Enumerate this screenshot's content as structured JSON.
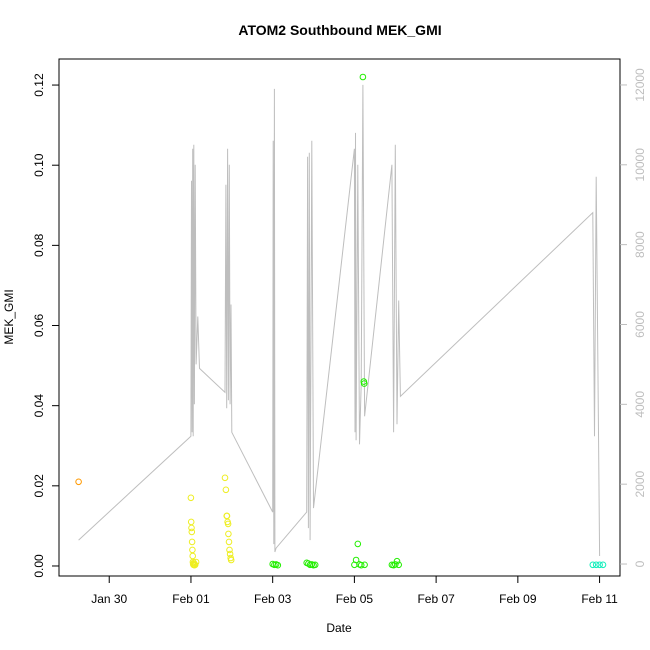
{
  "chart_data": {
    "type": "scatter",
    "title": "ATOM2 Southbound MEK_GMI",
    "xlabel": "Date",
    "ylabel": "MEK_GMI",
    "xlim": [
      "2020-01-28T18:30",
      "2020-02-11T12:00"
    ],
    "ylim": [
      -0.0025,
      0.1265
    ],
    "y2lim": [
      -300,
      12650
    ],
    "x_ticks": [
      {
        "date": "2020-01-30",
        "label": "Jan 30"
      },
      {
        "date": "2020-02-01",
        "label": "Feb 01"
      },
      {
        "date": "2020-02-03",
        "label": "Feb 03"
      },
      {
        "date": "2020-02-05",
        "label": "Feb 05"
      },
      {
        "date": "2020-02-07",
        "label": "Feb 07"
      },
      {
        "date": "2020-02-09",
        "label": "Feb 09"
      },
      {
        "date": "2020-02-11",
        "label": "Feb 11"
      }
    ],
    "y_ticks": [
      {
        "value": 0.0,
        "label": "0.00"
      },
      {
        "value": 0.02,
        "label": "0.02"
      },
      {
        "value": 0.04,
        "label": "0.04"
      },
      {
        "value": 0.06,
        "label": "0.06"
      },
      {
        "value": 0.08,
        "label": "0.08"
      },
      {
        "value": 0.1,
        "label": "0.10"
      },
      {
        "value": 0.12,
        "label": "0.12"
      }
    ],
    "y2_ticks": [
      {
        "value": 0,
        "label": "0"
      },
      {
        "value": 2000,
        "label": "2000"
      },
      {
        "value": 4000,
        "label": "4000"
      },
      {
        "value": 6000,
        "label": "6000"
      },
      {
        "value": 8000,
        "label": "8000"
      },
      {
        "value": 10000,
        "label": "10000"
      },
      {
        "value": 12000,
        "label": "12000"
      }
    ],
    "colors": {
      "secondary_line": "#bebebe",
      "points_jan29": "#ff9900",
      "points_feb01": "#eeee22",
      "points_feb03_06": "#22ee00",
      "points_feb11": "#11eebb"
    },
    "series": [
      {
        "color_key": "points_jan29",
        "points": [
          [
            "2020-01-29T06:00",
            0.021
          ]
        ]
      },
      {
        "color_key": "points_feb01",
        "points": [
          [
            "2020-02-01T00:00",
            0.017
          ],
          [
            "2020-02-01T00:10",
            0.011
          ],
          [
            "2020-02-01T00:20",
            0.0095
          ],
          [
            "2020-02-01T00:30",
            0.0085
          ],
          [
            "2020-02-01T00:40",
            0.006
          ],
          [
            "2020-02-01T00:50",
            0.004
          ],
          [
            "2020-02-01T01:00",
            0.0025
          ],
          [
            "2020-02-01T01:10",
            0.001
          ],
          [
            "2020-02-01T01:20",
            0.0005
          ],
          [
            "2020-02-01T01:30",
            0.0003
          ],
          [
            "2020-02-01T01:40",
            0.0008
          ],
          [
            "2020-02-01T01:50",
            0.0004
          ],
          [
            "2020-02-01T02:00",
            0.0002
          ],
          [
            "2020-02-01T02:30",
            0.0003
          ],
          [
            "2020-02-01T03:00",
            0.001
          ],
          [
            "2020-02-01T20:00",
            0.022
          ],
          [
            "2020-02-01T20:30",
            0.019
          ],
          [
            "2020-02-01T21:00",
            0.0125
          ],
          [
            "2020-02-01T21:30",
            0.011
          ],
          [
            "2020-02-01T22:00",
            0.008
          ],
          [
            "2020-02-01T22:20",
            0.006
          ],
          [
            "2020-02-01T22:40",
            0.004
          ],
          [
            "2020-02-01T23:00",
            0.003
          ],
          [
            "2020-02-01T23:20",
            0.002
          ],
          [
            "2020-02-01T23:40",
            0.0015
          ],
          [
            "2020-02-01T21:10",
            0.0125
          ],
          [
            "2020-02-01T21:50",
            0.0105
          ]
        ]
      },
      {
        "color_key": "points_feb03_06",
        "points": [
          [
            "2020-02-03T00:00",
            0.0005
          ],
          [
            "2020-02-03T01:00",
            0.0003
          ],
          [
            "2020-02-03T02:00",
            0.0004
          ],
          [
            "2020-02-03T03:00",
            0.0002
          ],
          [
            "2020-02-03T20:00",
            0.0008
          ],
          [
            "2020-02-03T21:00",
            0.0006
          ],
          [
            "2020-02-03T22:00",
            0.0003
          ],
          [
            "2020-02-03T23:00",
            0.0004
          ],
          [
            "2020-02-04T00:00",
            0.0002
          ],
          [
            "2020-02-04T01:00",
            0.0003
          ],
          [
            "2020-02-05T00:00",
            0.0003
          ],
          [
            "2020-02-05T01:00",
            0.0015
          ],
          [
            "2020-02-05T02:00",
            0.0055
          ],
          [
            "2020-02-05T03:00",
            0.0004
          ],
          [
            "2020-02-05T04:00",
            0.0002
          ],
          [
            "2020-02-05T05:00",
            0.122
          ],
          [
            "2020-02-05T05:30",
            0.046
          ],
          [
            "2020-02-05T05:45",
            0.0455
          ],
          [
            "2020-02-05T06:00",
            0.0003
          ],
          [
            "2020-02-05T22:00",
            0.0003
          ],
          [
            "2020-02-05T23:00",
            0.0002
          ],
          [
            "2020-02-06T00:00",
            0.0004
          ],
          [
            "2020-02-06T01:00",
            0.0012
          ],
          [
            "2020-02-06T02:00",
            0.0003
          ]
        ]
      },
      {
        "color_key": "points_feb11",
        "points": [
          [
            "2020-02-10T20:00",
            0.0003
          ],
          [
            "2020-02-10T22:00",
            0.0003
          ],
          [
            "2020-02-11T00:00",
            0.0003
          ],
          [
            "2020-02-11T02:00",
            0.0003
          ]
        ]
      }
    ],
    "secondary_series": {
      "color_key": "secondary_line",
      "points": [
        [
          "2020-01-29T06:00",
          600
        ],
        [
          "2020-02-01T00:00",
          3200
        ],
        [
          "2020-02-01T00:20",
          9600
        ],
        [
          "2020-02-01T00:40",
          3300
        ],
        [
          "2020-02-01T01:00",
          10400
        ],
        [
          "2020-02-01T01:20",
          3200
        ],
        [
          "2020-02-01T01:40",
          10500
        ],
        [
          "2020-02-01T02:00",
          4000
        ],
        [
          "2020-02-01T02:30",
          10000
        ],
        [
          "2020-02-01T03:00",
          5000
        ],
        [
          "2020-02-01T04:00",
          6200
        ],
        [
          "2020-02-01T05:00",
          4900
        ],
        [
          "2020-02-01T20:00",
          4300
        ],
        [
          "2020-02-01T20:30",
          9500
        ],
        [
          "2020-02-01T21:00",
          3900
        ],
        [
          "2020-02-01T21:30",
          10400
        ],
        [
          "2020-02-01T22:00",
          4100
        ],
        [
          "2020-02-01T22:30",
          10000
        ],
        [
          "2020-02-01T23:00",
          4000
        ],
        [
          "2020-02-01T23:30",
          6500
        ],
        [
          "2020-02-02T00:00",
          3300
        ],
        [
          "2020-02-03T00:00",
          1300
        ],
        [
          "2020-02-03T00:20",
          10600
        ],
        [
          "2020-02-03T00:40",
          500
        ],
        [
          "2020-02-03T01:00",
          11900
        ],
        [
          "2020-02-03T01:20",
          300
        ],
        [
          "2020-02-03T02:00",
          400
        ],
        [
          "2020-02-03T20:00",
          1300
        ],
        [
          "2020-02-03T20:30",
          10200
        ],
        [
          "2020-02-03T21:00",
          900
        ],
        [
          "2020-02-03T21:30",
          10300
        ],
        [
          "2020-02-03T22:00",
          600
        ],
        [
          "2020-02-03T23:00",
          10600
        ],
        [
          "2020-02-04T00:00",
          1400
        ],
        [
          "2020-02-05T00:00",
          10400
        ],
        [
          "2020-02-05T00:20",
          3300
        ],
        [
          "2020-02-05T00:40",
          10800
        ],
        [
          "2020-02-05T01:00",
          3100
        ],
        [
          "2020-02-05T02:00",
          10000
        ],
        [
          "2020-02-05T03:00",
          3000
        ],
        [
          "2020-02-05T04:00",
          4500
        ],
        [
          "2020-02-05T05:00",
          12000
        ],
        [
          "2020-02-05T06:00",
          3700
        ],
        [
          "2020-02-05T22:00",
          10000
        ],
        [
          "2020-02-05T23:00",
          3300
        ],
        [
          "2020-02-06T00:00",
          10500
        ],
        [
          "2020-02-06T01:00",
          3500
        ],
        [
          "2020-02-06T02:00",
          6600
        ],
        [
          "2020-02-06T03:00",
          4200
        ],
        [
          "2020-02-10T20:00",
          8800
        ],
        [
          "2020-02-10T21:00",
          3200
        ],
        [
          "2020-02-10T22:00",
          9700
        ],
        [
          "2020-02-11T00:00",
          200
        ]
      ]
    }
  }
}
